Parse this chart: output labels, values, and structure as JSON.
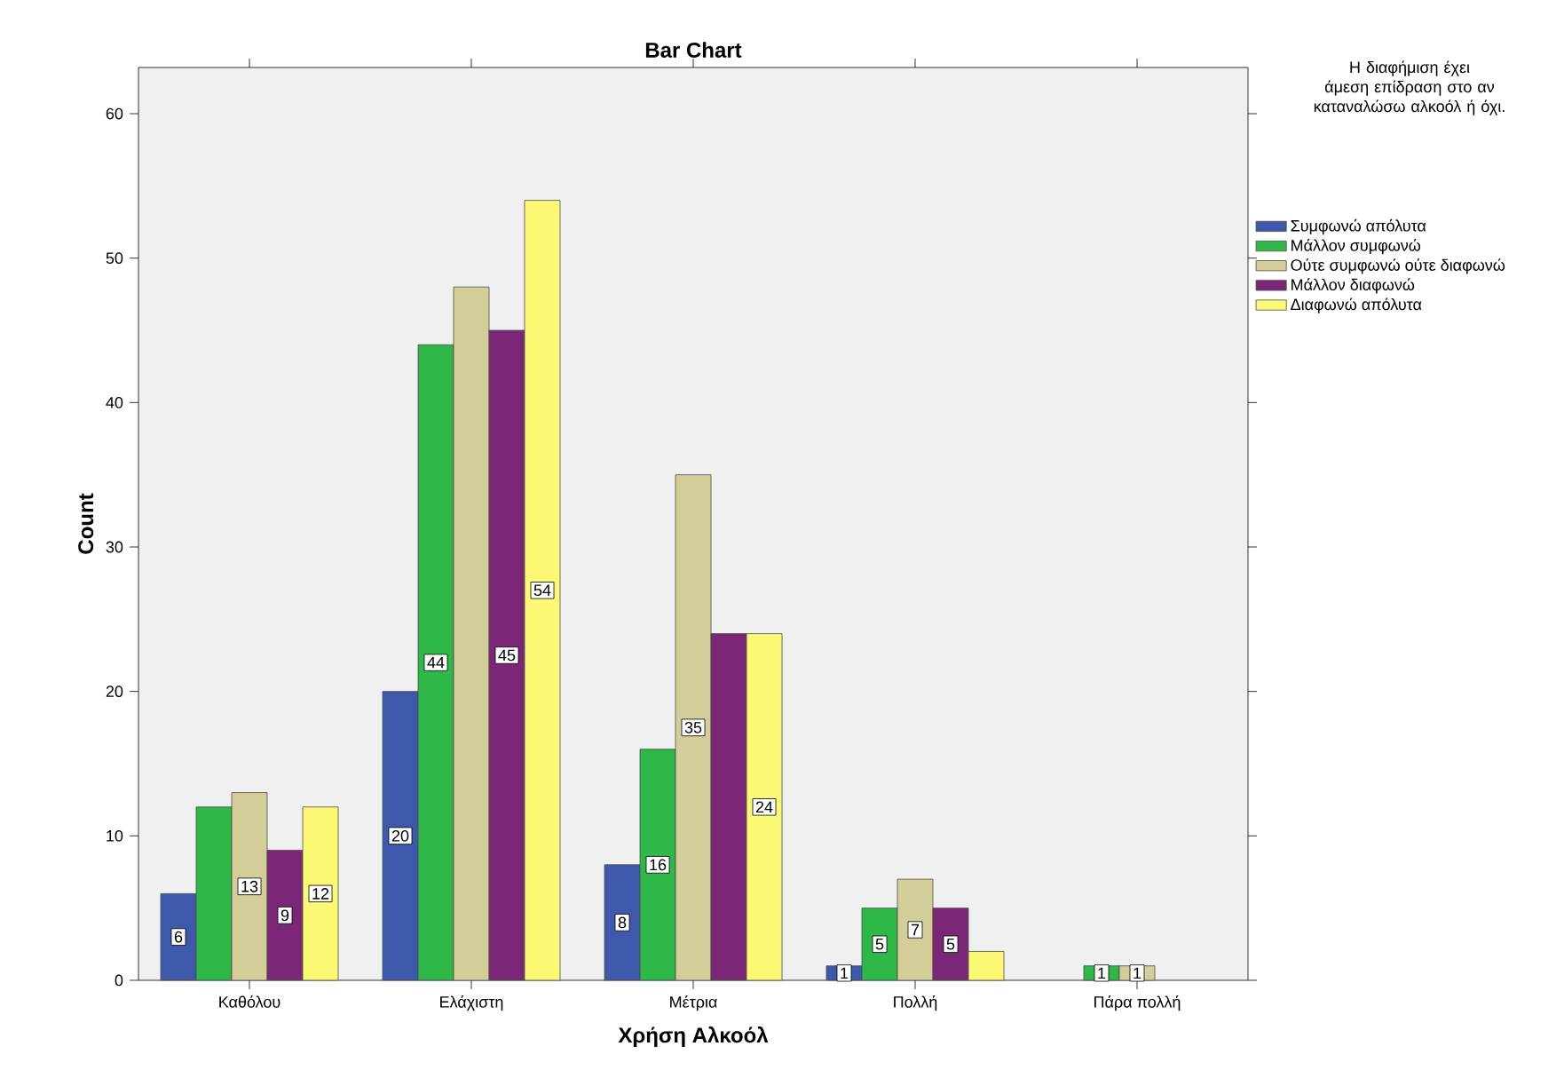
{
  "chart_data": {
    "type": "bar",
    "title": "Bar Chart",
    "xlabel": "Χρήση Αλκοόλ",
    "ylabel": "Count",
    "legend_title": "Η διαφήμιση έχει άμεση επίδραση στο αν καταναλώσω αλκοόλ ή όχι.",
    "categories": [
      "Καθόλου",
      "Ελάχιστη",
      "Μέτρια",
      "Πολλή",
      "Πάρα πολλή"
    ],
    "series": [
      {
        "name": "Συμφωνώ απόλυτα",
        "color": "#3e58ac",
        "values": [
          6,
          20,
          8,
          1,
          null
        ],
        "value_labels": [
          "6",
          "20",
          "8",
          "1",
          null
        ]
      },
      {
        "name": "Μάλλον συμφωνώ",
        "color": "#2eb848",
        "values": [
          12,
          44,
          16,
          5,
          1
        ],
        "value_labels": [
          null,
          "44",
          "16",
          "5",
          "1"
        ]
      },
      {
        "name": "Ούτε συμφωνώ ούτε διαφωνώ",
        "color": "#d3ce97",
        "values": [
          13,
          48,
          35,
          7,
          1
        ],
        "value_labels": [
          "13",
          null,
          "35",
          "7",
          "1"
        ]
      },
      {
        "name": "Μάλλον διαφωνώ",
        "color": "#7c2678",
        "values": [
          9,
          45,
          24,
          5,
          null
        ],
        "value_labels": [
          "9",
          "45",
          null,
          "5",
          null
        ]
      },
      {
        "name": "Διαφωνώ απόλυτα",
        "color": "#fbf873",
        "values": [
          12,
          54,
          24,
          2,
          null
        ],
        "value_labels": [
          "12",
          "54",
          "24",
          null,
          null
        ]
      }
    ],
    "ylim": [
      0,
      63.2
    ],
    "yticks": [
      0,
      10,
      20,
      30,
      40,
      50,
      60
    ],
    "grid": false,
    "legend": "right"
  }
}
